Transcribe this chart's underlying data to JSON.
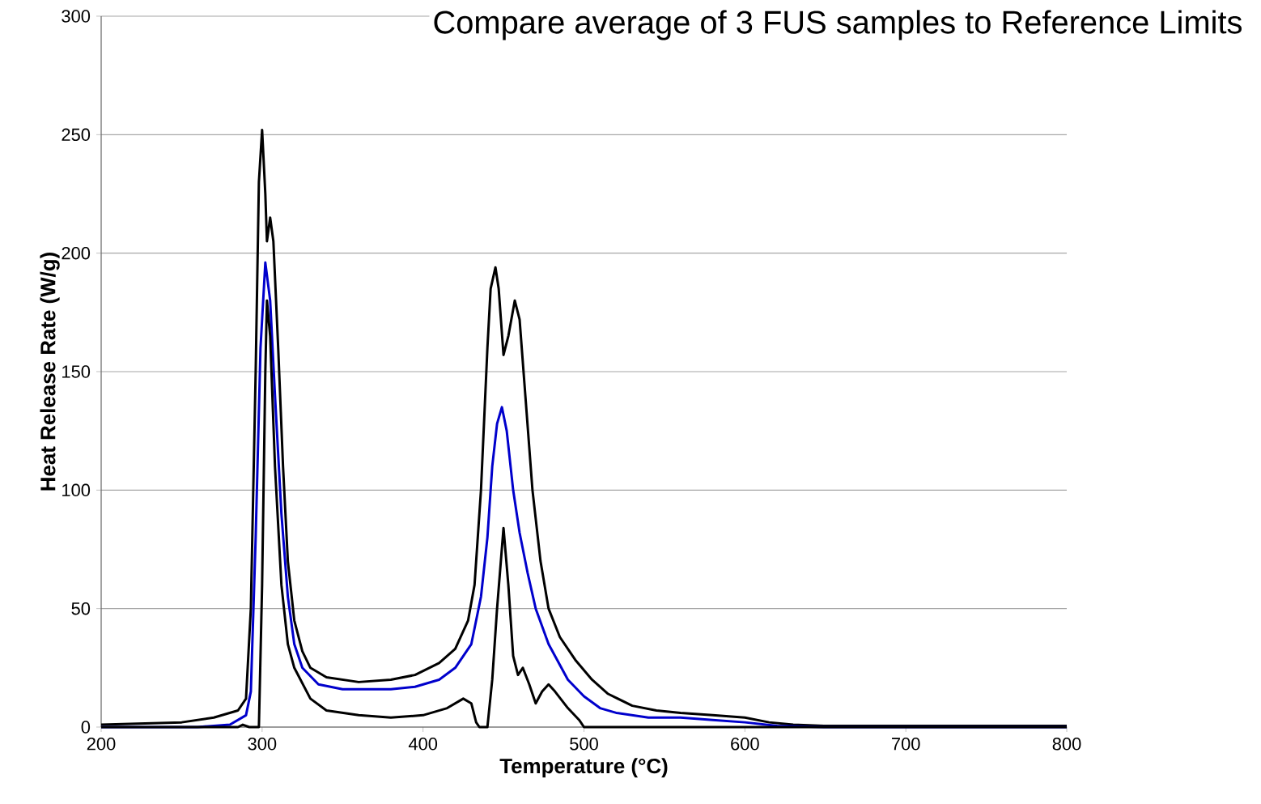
{
  "chart_data": {
    "type": "line",
    "title": "Compare average of 3 FUS samples to Reference Limits",
    "xlabel": "Temperature (°C)",
    "ylabel": "Heat Release Rate (W/g)",
    "xlim": [
      200,
      800
    ],
    "ylim": [
      0,
      300
    ],
    "xticks": [
      200,
      300,
      400,
      500,
      600,
      700,
      800
    ],
    "yticks": [
      0,
      50,
      100,
      150,
      200,
      250,
      300
    ],
    "grid": "y",
    "series": [
      {
        "color": "#000000",
        "x": [
          200,
          250,
          270,
          285,
          290,
          293,
          296,
          298,
          300,
          302,
          303,
          305,
          307,
          310,
          313,
          316,
          320,
          325,
          330,
          340,
          360,
          380,
          395,
          410,
          420,
          428,
          432,
          436,
          440,
          442,
          445,
          447,
          450,
          453,
          457,
          460,
          463,
          468,
          473,
          478,
          485,
          495,
          505,
          515,
          530,
          545,
          560,
          580,
          600,
          615,
          630,
          650,
          700,
          800
        ],
        "values": [
          1,
          2,
          4,
          7,
          12,
          50,
          150,
          230,
          252,
          225,
          205,
          215,
          205,
          160,
          110,
          70,
          45,
          32,
          25,
          21,
          19,
          20,
          22,
          27,
          33,
          45,
          60,
          100,
          160,
          185,
          194,
          185,
          157,
          165,
          180,
          172,
          145,
          100,
          70,
          50,
          38,
          28,
          20,
          14,
          9,
          7,
          6,
          5,
          4,
          2,
          1,
          0.5,
          0.5,
          0.5
        ]
      },
      {
        "color": "#0000cc",
        "x": [
          200,
          260,
          280,
          290,
          293,
          296,
          299,
          302,
          305,
          308,
          312,
          316,
          320,
          325,
          335,
          350,
          380,
          395,
          410,
          420,
          430,
          436,
          440,
          443,
          446,
          449,
          452,
          456,
          460,
          465,
          470,
          478,
          490,
          500,
          510,
          520,
          540,
          560,
          580,
          600,
          620,
          650,
          800
        ],
        "values": [
          0,
          0,
          1,
          5,
          15,
          80,
          160,
          196,
          180,
          140,
          90,
          55,
          35,
          25,
          18,
          16,
          16,
          17,
          20,
          25,
          35,
          55,
          80,
          110,
          128,
          135,
          125,
          100,
          82,
          65,
          50,
          35,
          20,
          13,
          8,
          6,
          4,
          4,
          3,
          2,
          0.5,
          0,
          0
        ]
      },
      {
        "color": "#000000",
        "x": [
          200,
          285,
          288,
          292,
          298,
          300,
          302,
          303,
          305,
          308,
          312,
          316,
          320,
          330,
          340,
          360,
          380,
          400,
          415,
          425,
          430,
          433,
          435,
          440,
          443,
          446,
          450,
          453,
          456,
          459,
          462,
          466,
          470,
          474,
          478,
          482,
          490,
          497,
          500,
          800
        ],
        "values": [
          0,
          0,
          1,
          0,
          0,
          60,
          150,
          180,
          165,
          110,
          60,
          35,
          25,
          12,
          7,
          5,
          4,
          5,
          8,
          12,
          10,
          2,
          0,
          0,
          20,
          50,
          84,
          60,
          30,
          22,
          25,
          18,
          10,
          15,
          18,
          15,
          8,
          3,
          0,
          0
        ]
      }
    ]
  }
}
